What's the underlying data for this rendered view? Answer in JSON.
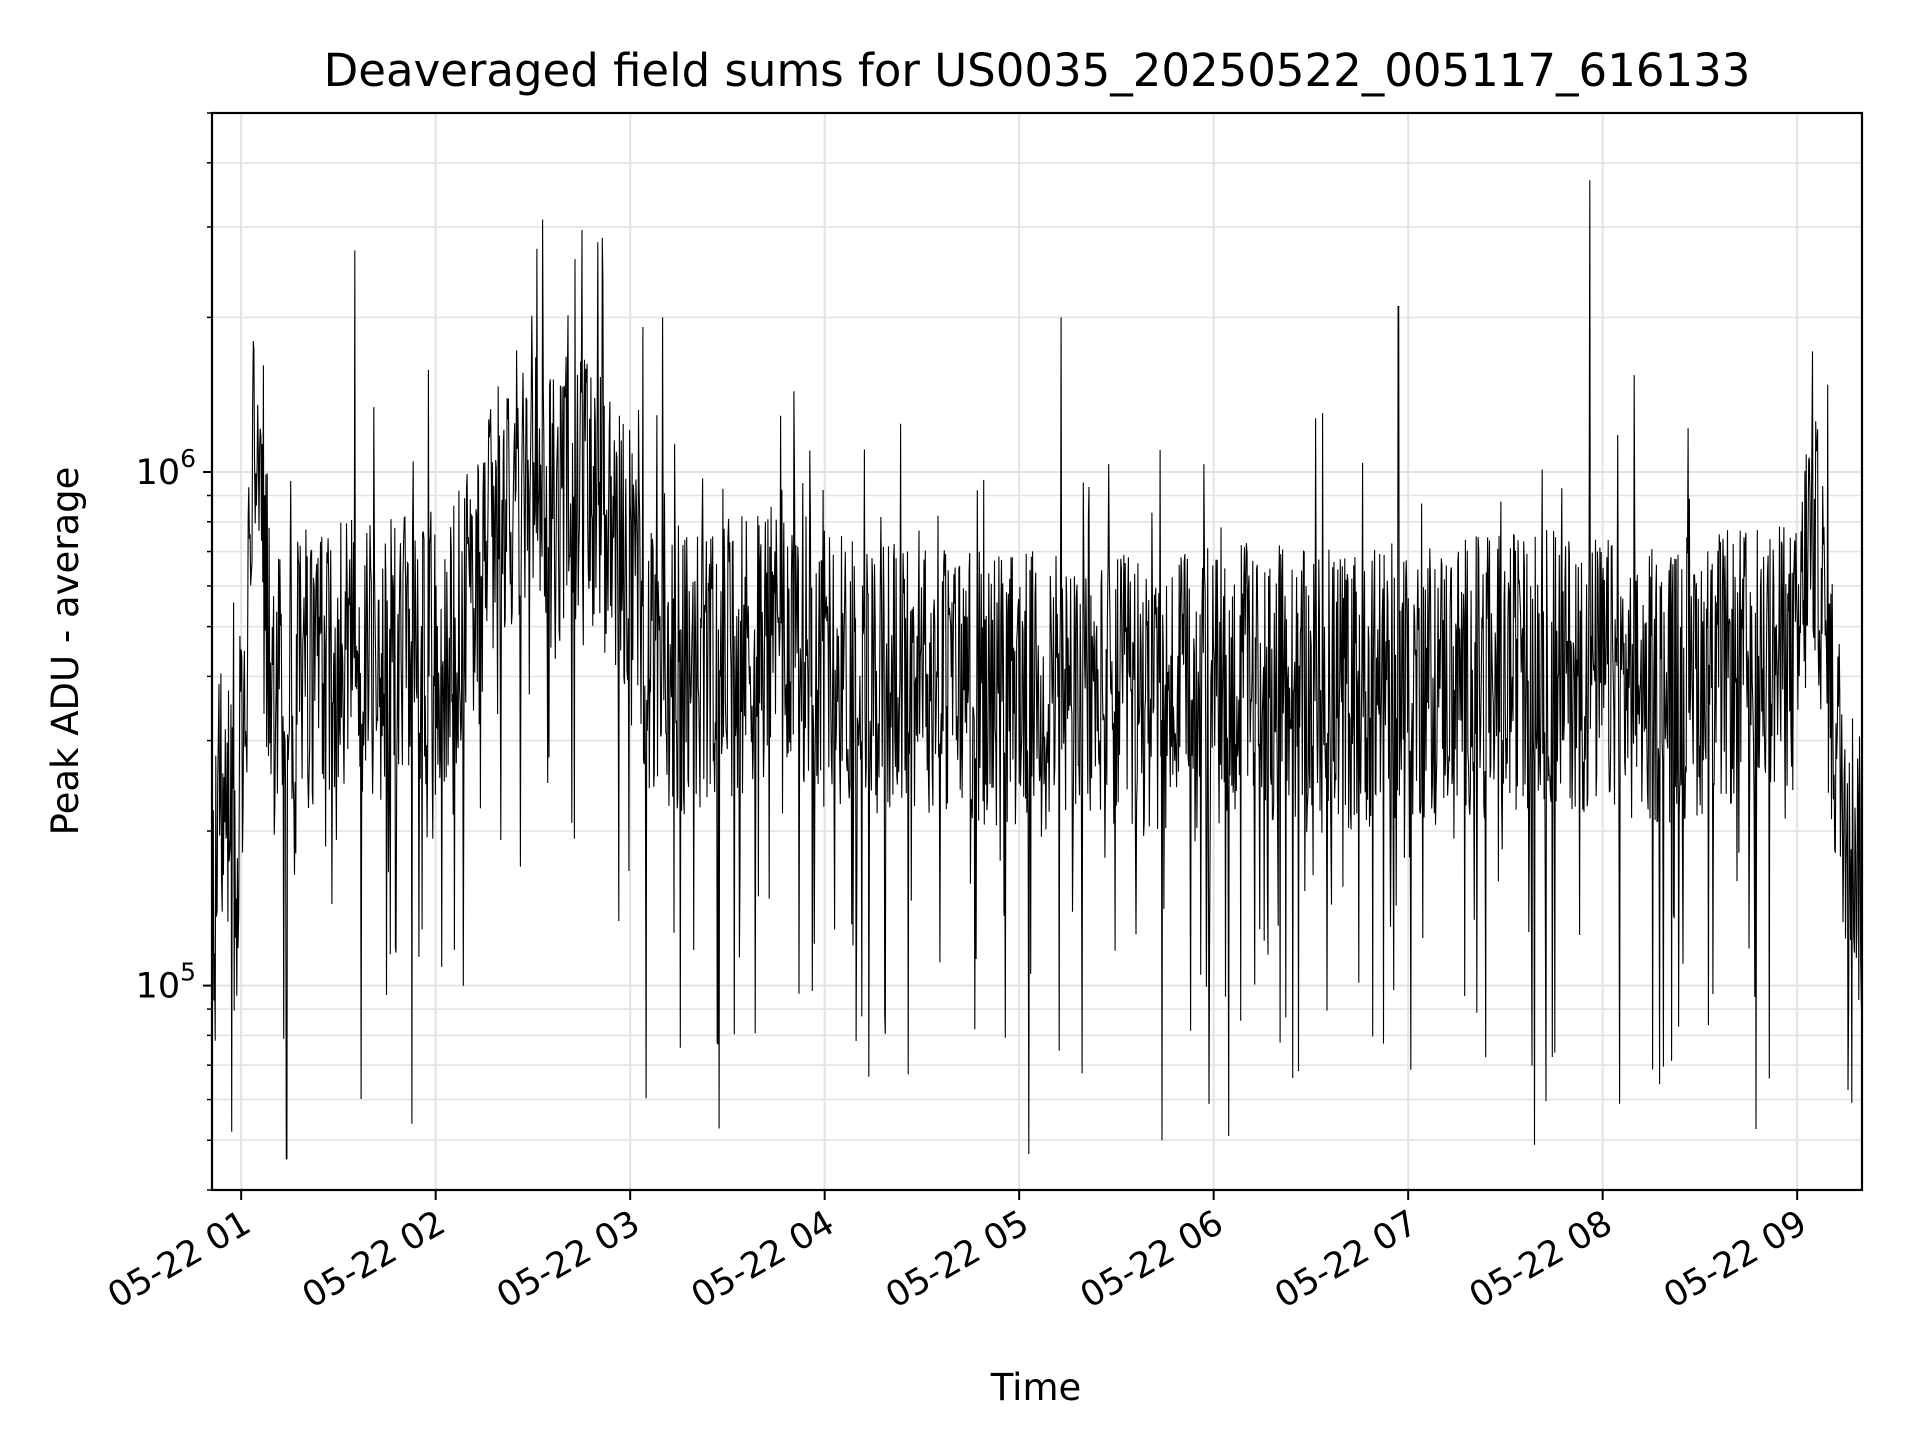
{
  "chart_data": {
    "type": "line",
    "title": "Deaveraged field sums for US0035_20250522_005117_616133",
    "xlabel": "Time",
    "ylabel": "Peak ADU - average",
    "yscale": "log",
    "ylim": [
      40000,
      5000000
    ],
    "xlim": [
      "2025-05-22 00:51",
      "2025-05-22 09:20"
    ],
    "grid": true,
    "x_tick_labels": [
      "05-22 01",
      "05-22 02",
      "05-22 03",
      "05-22 04",
      "05-22 05",
      "05-22 06",
      "05-22 07",
      "05-22 08",
      "05-22 09"
    ],
    "y_tick_labels": [
      {
        "value": 100000,
        "base": "10",
        "exp": "5"
      },
      {
        "value": 1000000,
        "base": "10",
        "exp": "6"
      }
    ],
    "line_color": "#000000",
    "series": [
      {
        "x": [
          "2025-05-22 00:51",
          "2025-05-22 00:53",
          "2025-05-22 00:55",
          "2025-05-22 00:57",
          "2025-05-22 00:59",
          "2025-05-22 01:00",
          "2025-05-22 01:02",
          "2025-05-22 01:03",
          "2025-05-22 01:04",
          "2025-05-22 01:05",
          "2025-05-22 01:07",
          "2025-05-22 01:10",
          "2025-05-22 01:14",
          "2025-05-22 01:17",
          "2025-05-22 01:20",
          "2025-05-22 01:25",
          "2025-05-22 01:30",
          "2025-05-22 01:35",
          "2025-05-22 01:40",
          "2025-05-22 01:45",
          "2025-05-22 01:50",
          "2025-05-22 01:55",
          "2025-05-22 02:00",
          "2025-05-22 02:05",
          "2025-05-22 02:10",
          "2025-05-22 02:15",
          "2025-05-22 02:20",
          "2025-05-22 02:25",
          "2025-05-22 02:30",
          "2025-05-22 02:35",
          "2025-05-22 02:40",
          "2025-05-22 02:45",
          "2025-05-22 02:50",
          "2025-05-22 02:55",
          "2025-05-22 03:00",
          "2025-05-22 03:05",
          "2025-05-22 03:10",
          "2025-05-22 03:15",
          "2025-05-22 03:20",
          "2025-05-22 03:30",
          "2025-05-22 03:40",
          "2025-05-22 03:50",
          "2025-05-22 04:00",
          "2025-05-22 04:15",
          "2025-05-22 04:30",
          "2025-05-22 04:45",
          "2025-05-22 05:00",
          "2025-05-22 05:15",
          "2025-05-22 05:30",
          "2025-05-22 05:45",
          "2025-05-22 06:00",
          "2025-05-22 06:15",
          "2025-05-22 06:30",
          "2025-05-22 06:45",
          "2025-05-22 07:00",
          "2025-05-22 07:15",
          "2025-05-22 07:30",
          "2025-05-22 07:45",
          "2025-05-22 08:00",
          "2025-05-22 08:15",
          "2025-05-22 08:30",
          "2025-05-22 08:45",
          "2025-05-22 09:00",
          "2025-05-22 09:03",
          "2025-05-22 09:06",
          "2025-05-22 09:09",
          "2025-05-22 09:12",
          "2025-05-22 09:15",
          "2025-05-22 09:18",
          "2025-05-22 09:20"
        ],
        "y": [
          130000,
          220000,
          240000,
          200000,
          130000,
          300000,
          450000,
          900000,
          1600000,
          900000,
          600000,
          350000,
          400000,
          420000,
          380000,
          430000,
          450000,
          440000,
          420000,
          430000,
          450000,
          460000,
          440000,
          470000,
          520000,
          650000,
          850000,
          950000,
          900000,
          850000,
          900000,
          950000,
          900000,
          800000,
          600000,
          450000,
          420000,
          400000,
          400000,
          430000,
          470000,
          500000,
          420000,
          400000,
          410000,
          390000,
          380000,
          360000,
          370000,
          360000,
          380000,
          390000,
          370000,
          380000,
          390000,
          400000,
          410000,
          420000,
          400000,
          380000,
          400000,
          420000,
          420000,
          700000,
          800000,
          450000,
          300000,
          220000,
          190000,
          150000
        ],
        "envelope_min": 45000,
        "envelope_max": 3800000
      }
    ],
    "notable_spikes": [
      {
        "x": "2025-05-22 01:35",
        "y": 2700000
      },
      {
        "x": "2025-05-22 02:33",
        "y": 3100000
      },
      {
        "x": "2025-05-22 02:50",
        "y": 2800000
      },
      {
        "x": "2025-05-22 03:10",
        "y": 2000000
      },
      {
        "x": "2025-05-22 05:13",
        "y": 2000000
      },
      {
        "x": "2025-05-22 06:57",
        "y": 2100000
      },
      {
        "x": "2025-05-22 07:56",
        "y": 3700000
      },
      {
        "x": "2025-05-22 09:06",
        "y": 1100000
      }
    ],
    "notable_dips": [
      {
        "x": "2025-05-22 01:14",
        "y": 46000
      },
      {
        "x": "2025-05-22 05:03",
        "y": 47000
      },
      {
        "x": "2025-05-22 05:44",
        "y": 50000
      },
      {
        "x": "2025-05-22 07:39",
        "y": 49000
      }
    ]
  }
}
